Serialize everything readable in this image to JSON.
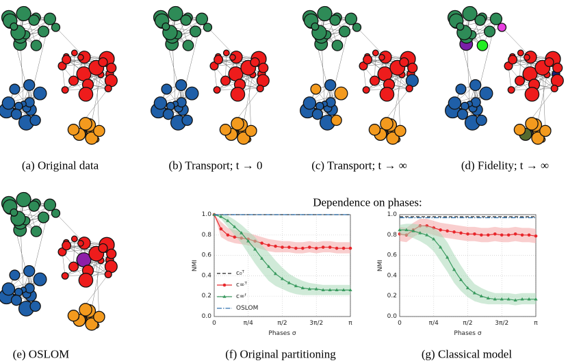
{
  "title": "Dependence on phases:",
  "captions": [
    "(a) Original data",
    "(b) Transport; t → 0",
    "(c) Transport; t → ∞",
    "(d) Fidelity; t → ∞",
    "(e) OSLOM",
    "(f) Original partitioning",
    "(g) Classical model"
  ],
  "chart_data": [
    {
      "type": "line",
      "xlabel": "Phases σ",
      "ylabel": "NMI",
      "xlim": [
        0,
        3.1416
      ],
      "ylim": [
        0,
        1.0
      ],
      "xticks": [
        0,
        {
          "value": 0.7854,
          "label": "π/4"
        },
        {
          "value": 1.5708,
          "label": "π/2"
        },
        {
          "value": 2.3562,
          "label": "3π/2"
        },
        {
          "value": 3.1416,
          "label": "π"
        }
      ],
      "yticks": [
        {
          "value": 0,
          "label": "0.0"
        },
        0.2,
        0.4,
        0.6,
        0.8,
        {
          "value": 1,
          "label": "1.0"
        }
      ],
      "grid": true,
      "legend": "lower left",
      "x": [
        0,
        0.157,
        0.314,
        0.471,
        0.628,
        0.785,
        0.942,
        1.1,
        1.257,
        1.414,
        1.571,
        1.728,
        1.885,
        2.042,
        2.199,
        2.356,
        2.513,
        2.67,
        2.827,
        2.985,
        3.142
      ],
      "series": [
        {
          "name": "c₀ᵀ",
          "color": "#222222",
          "linestyle": "dashed",
          "x": [
            0,
            3.1416
          ],
          "values": [
            1.0,
            1.0
          ]
        },
        {
          "name": "c∞ᵀ",
          "color": "#e8262b",
          "band_color": "#f4a6a6",
          "linestyle": "solid",
          "marker": "circle",
          "values": [
            1.0,
            0.86,
            0.8,
            0.78,
            0.77,
            0.76,
            0.74,
            0.72,
            0.7,
            0.69,
            0.68,
            0.68,
            0.67,
            0.67,
            0.68,
            0.67,
            0.68,
            0.68,
            0.67,
            0.67,
            0.67
          ],
          "lower": [
            1.0,
            0.78,
            0.74,
            0.72,
            0.71,
            0.7,
            0.68,
            0.66,
            0.64,
            0.63,
            0.63,
            0.63,
            0.62,
            0.62,
            0.63,
            0.62,
            0.63,
            0.63,
            0.62,
            0.62,
            0.62
          ],
          "upper": [
            1.0,
            0.93,
            0.87,
            0.85,
            0.83,
            0.82,
            0.8,
            0.78,
            0.76,
            0.75,
            0.74,
            0.74,
            0.73,
            0.73,
            0.74,
            0.73,
            0.74,
            0.74,
            0.73,
            0.73,
            0.73
          ]
        },
        {
          "name": "c∞ᶠ",
          "color": "#3a9a5f",
          "band_color": "#a9d8b8",
          "linestyle": "solid",
          "marker": "triangle",
          "values": [
            1.0,
            0.98,
            0.94,
            0.88,
            0.82,
            0.74,
            0.66,
            0.57,
            0.49,
            0.42,
            0.37,
            0.33,
            0.3,
            0.28,
            0.27,
            0.27,
            0.26,
            0.26,
            0.26,
            0.26,
            0.26
          ],
          "lower": [
            1.0,
            0.96,
            0.88,
            0.8,
            0.72,
            0.62,
            0.52,
            0.43,
            0.35,
            0.3,
            0.27,
            0.24,
            0.22,
            0.21,
            0.21,
            0.21,
            0.21,
            0.21,
            0.21,
            0.21,
            0.21
          ],
          "upper": [
            1.0,
            1.0,
            0.99,
            0.95,
            0.9,
            0.84,
            0.78,
            0.7,
            0.63,
            0.55,
            0.48,
            0.42,
            0.38,
            0.35,
            0.33,
            0.32,
            0.31,
            0.31,
            0.31,
            0.31,
            0.31
          ]
        },
        {
          "name": "OSLOM",
          "color": "#2c6fad",
          "linestyle": "dashdot",
          "x": [
            0,
            3.1416
          ],
          "values": [
            1.0,
            1.0
          ]
        }
      ]
    },
    {
      "type": "line",
      "xlabel": "Phases σ",
      "ylabel": "NMI",
      "xlim": [
        0,
        3.1416
      ],
      "ylim": [
        0,
        1.0
      ],
      "xticks": [
        0,
        {
          "value": 0.7854,
          "label": "π/4"
        },
        {
          "value": 1.5708,
          "label": "π/2"
        },
        {
          "value": 2.3562,
          "label": "3π/2"
        },
        {
          "value": 3.1416,
          "label": "π"
        }
      ],
      "yticks": [
        {
          "value": 0,
          "label": "0.0"
        },
        0.2,
        0.4,
        0.6,
        0.8,
        {
          "value": 1,
          "label": "1.0"
        }
      ],
      "grid": true,
      "x": [
        0,
        0.157,
        0.314,
        0.471,
        0.628,
        0.785,
        0.942,
        1.1,
        1.257,
        1.414,
        1.571,
        1.728,
        1.885,
        2.042,
        2.199,
        2.356,
        2.513,
        2.67,
        2.827,
        2.985,
        3.142
      ],
      "series": [
        {
          "color": "#222222",
          "linestyle": "dashed",
          "x": [
            0,
            3.1416
          ],
          "values": [
            0.98,
            0.98
          ]
        },
        {
          "color": "#e8262b",
          "band_color": "#f4a6a6",
          "linestyle": "solid",
          "marker": "circle",
          "values": [
            0.81,
            0.8,
            0.85,
            0.89,
            0.89,
            0.87,
            0.85,
            0.84,
            0.83,
            0.82,
            0.81,
            0.81,
            0.8,
            0.8,
            0.81,
            0.8,
            0.8,
            0.81,
            0.8,
            0.8,
            0.79
          ],
          "lower": [
            0.74,
            0.73,
            0.78,
            0.82,
            0.82,
            0.8,
            0.78,
            0.77,
            0.76,
            0.75,
            0.74,
            0.74,
            0.73,
            0.73,
            0.74,
            0.73,
            0.73,
            0.74,
            0.73,
            0.73,
            0.72
          ],
          "upper": [
            0.88,
            0.87,
            0.92,
            0.96,
            0.96,
            0.94,
            0.92,
            0.91,
            0.9,
            0.89,
            0.88,
            0.88,
            0.87,
            0.87,
            0.88,
            0.87,
            0.87,
            0.88,
            0.87,
            0.87,
            0.86
          ]
        },
        {
          "color": "#3a9a5f",
          "band_color": "#a9d8b8",
          "linestyle": "solid",
          "marker": "triangle",
          "values": [
            0.85,
            0.85,
            0.84,
            0.82,
            0.8,
            0.76,
            0.68,
            0.58,
            0.46,
            0.36,
            0.28,
            0.23,
            0.2,
            0.18,
            0.17,
            0.17,
            0.17,
            0.16,
            0.17,
            0.17,
            0.17
          ],
          "lower": [
            0.8,
            0.79,
            0.77,
            0.74,
            0.7,
            0.64,
            0.54,
            0.44,
            0.33,
            0.25,
            0.19,
            0.15,
            0.13,
            0.12,
            0.12,
            0.12,
            0.12,
            0.11,
            0.12,
            0.12,
            0.12
          ],
          "upper": [
            0.9,
            0.91,
            0.91,
            0.9,
            0.89,
            0.87,
            0.82,
            0.73,
            0.61,
            0.5,
            0.4,
            0.32,
            0.28,
            0.25,
            0.23,
            0.23,
            0.23,
            0.22,
            0.23,
            0.23,
            0.23
          ]
        },
        {
          "color": "#2c6fad",
          "linestyle": "dashdot",
          "x": [
            0,
            3.1416
          ],
          "values": [
            0.97,
            0.97
          ]
        }
      ]
    }
  ]
}
